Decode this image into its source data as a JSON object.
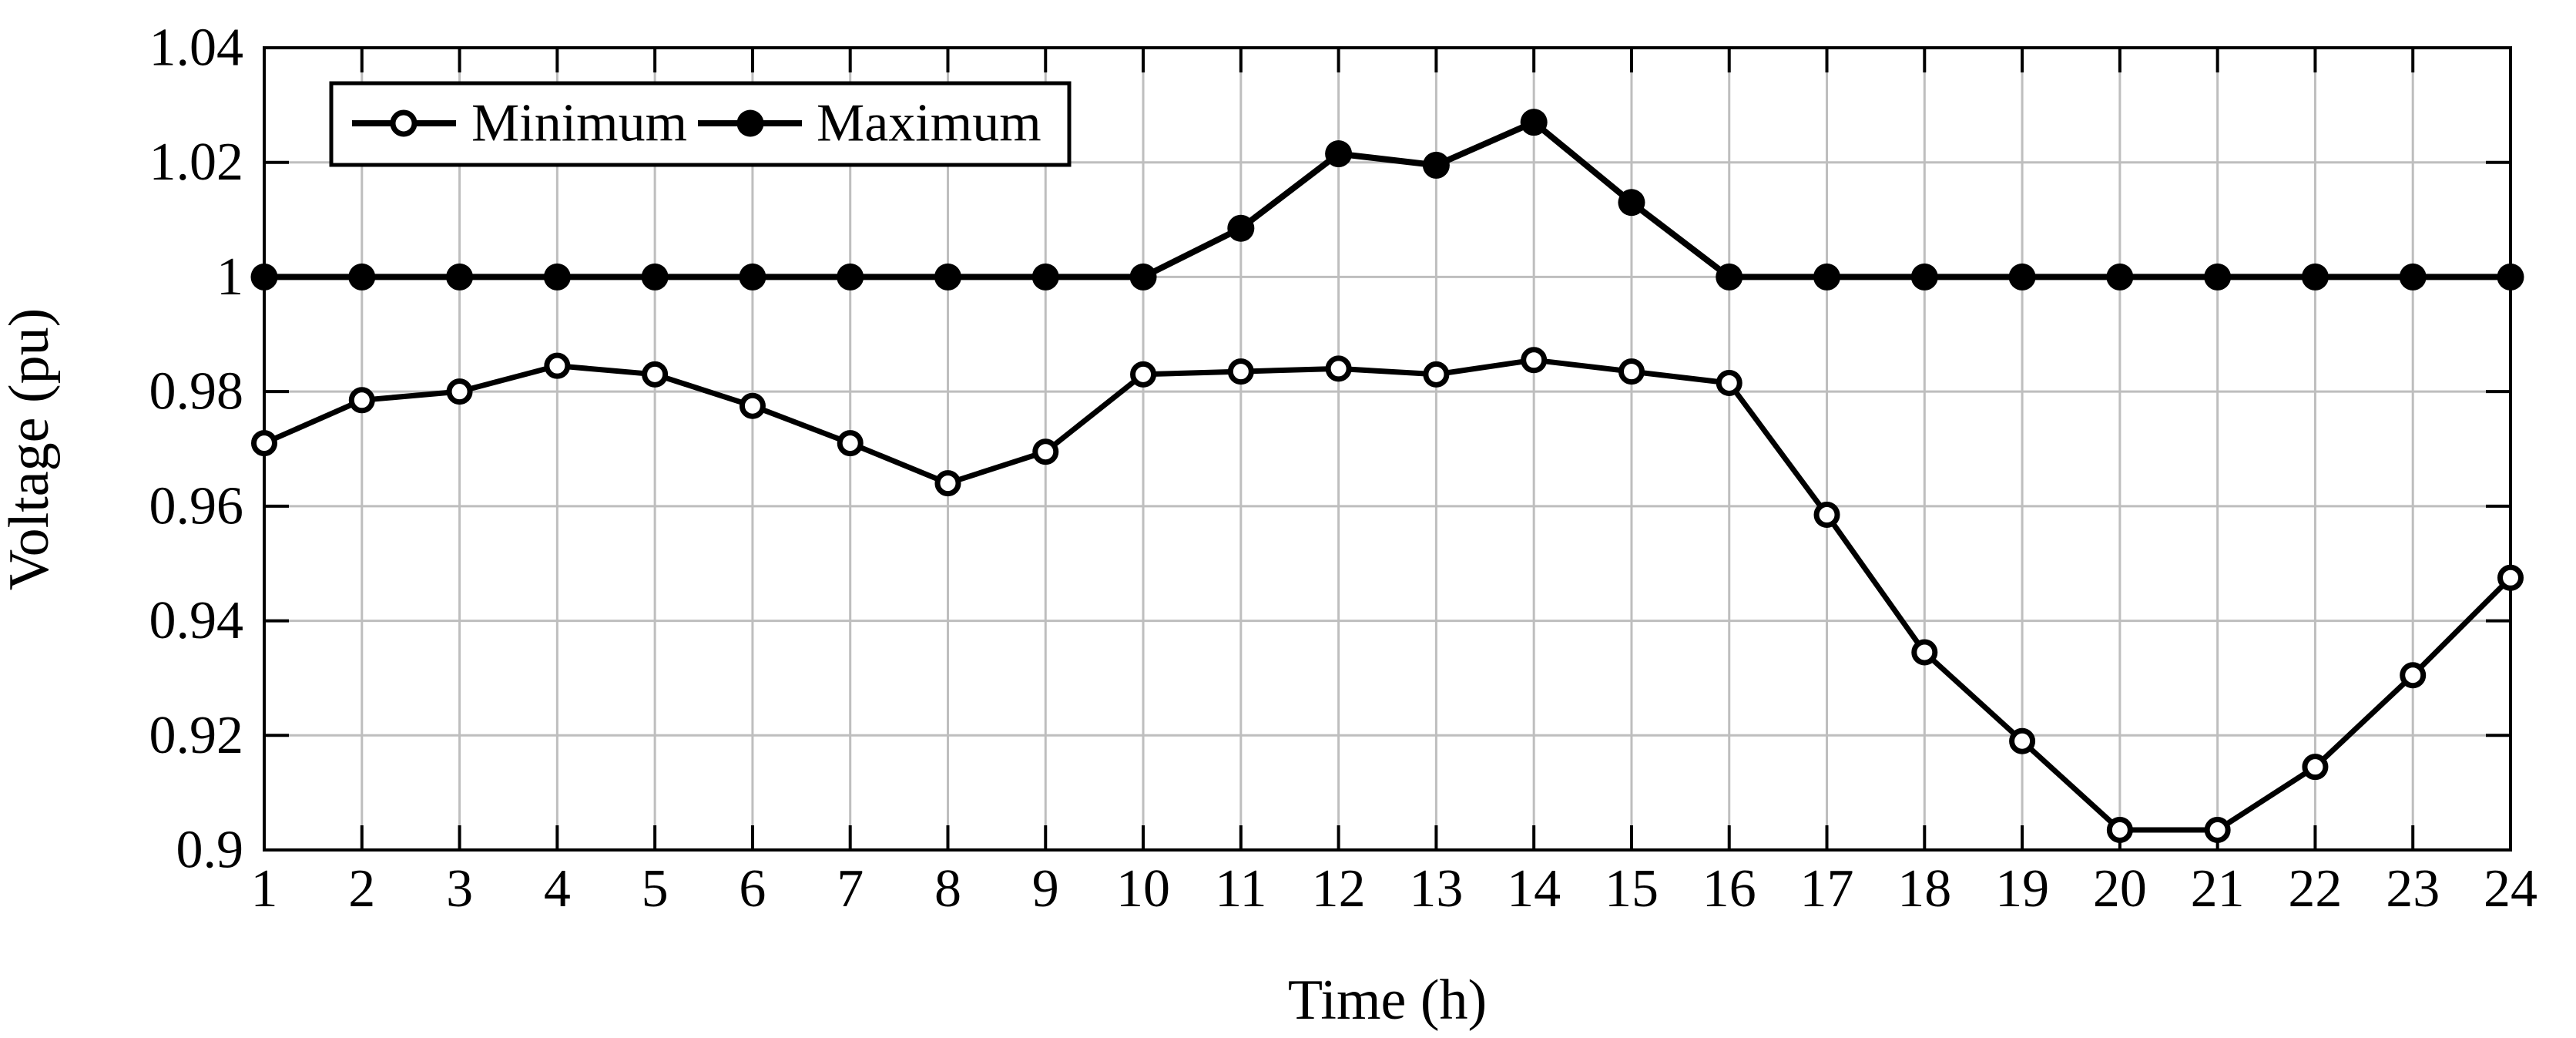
{
  "chart_data": {
    "type": "line",
    "title": "",
    "xlabel": "Time (h)",
    "ylabel": "Voltage (pu)",
    "x": [
      1,
      2,
      3,
      4,
      5,
      6,
      7,
      8,
      9,
      10,
      11,
      12,
      13,
      14,
      15,
      16,
      17,
      18,
      19,
      20,
      21,
      22,
      23,
      24
    ],
    "x_tick_labels": [
      "1",
      "2",
      "3",
      "4",
      "5",
      "6",
      "7",
      "8",
      "9",
      "10",
      "11",
      "12",
      "13",
      "14",
      "15",
      "16",
      "17",
      "18",
      "19",
      "20",
      "21",
      "22",
      "23",
      "24"
    ],
    "series": [
      {
        "name": "Minimum",
        "marker": "open-circle",
        "values": [
          0.971,
          0.9785,
          0.98,
          0.9845,
          0.983,
          0.9775,
          0.971,
          0.964,
          0.9695,
          0.983,
          0.9835,
          0.984,
          0.983,
          0.9855,
          0.9835,
          0.9815,
          0.9585,
          0.9345,
          0.919,
          0.9035,
          0.9035,
          0.9145,
          0.9305,
          0.9475
        ]
      },
      {
        "name": "Maximum",
        "marker": "filled-circle",
        "values": [
          1.0,
          1.0,
          1.0,
          1.0,
          1.0,
          1.0,
          1.0,
          1.0,
          1.0,
          1.0,
          1.0085,
          1.0215,
          1.0195,
          1.027,
          1.013,
          1.0,
          1.0,
          1.0,
          1.0,
          1.0,
          1.0,
          1.0,
          1.0,
          1.0
        ]
      }
    ],
    "xlim": [
      1,
      24
    ],
    "ylim": [
      0.9,
      1.04
    ],
    "y_ticks": [
      0.9,
      0.92,
      0.94,
      0.96,
      0.98,
      1.0,
      1.02,
      1.04
    ],
    "y_tick_labels": [
      "0.9",
      "0.92",
      "0.94",
      "0.96",
      "0.98",
      "1",
      "1.02",
      "1.04"
    ],
    "grid": true,
    "legend_position": "top-left-inside",
    "colors": {
      "series": "#000000",
      "grid": "#bebebe",
      "background": "#ffffff",
      "legend_border": "#000000"
    }
  }
}
